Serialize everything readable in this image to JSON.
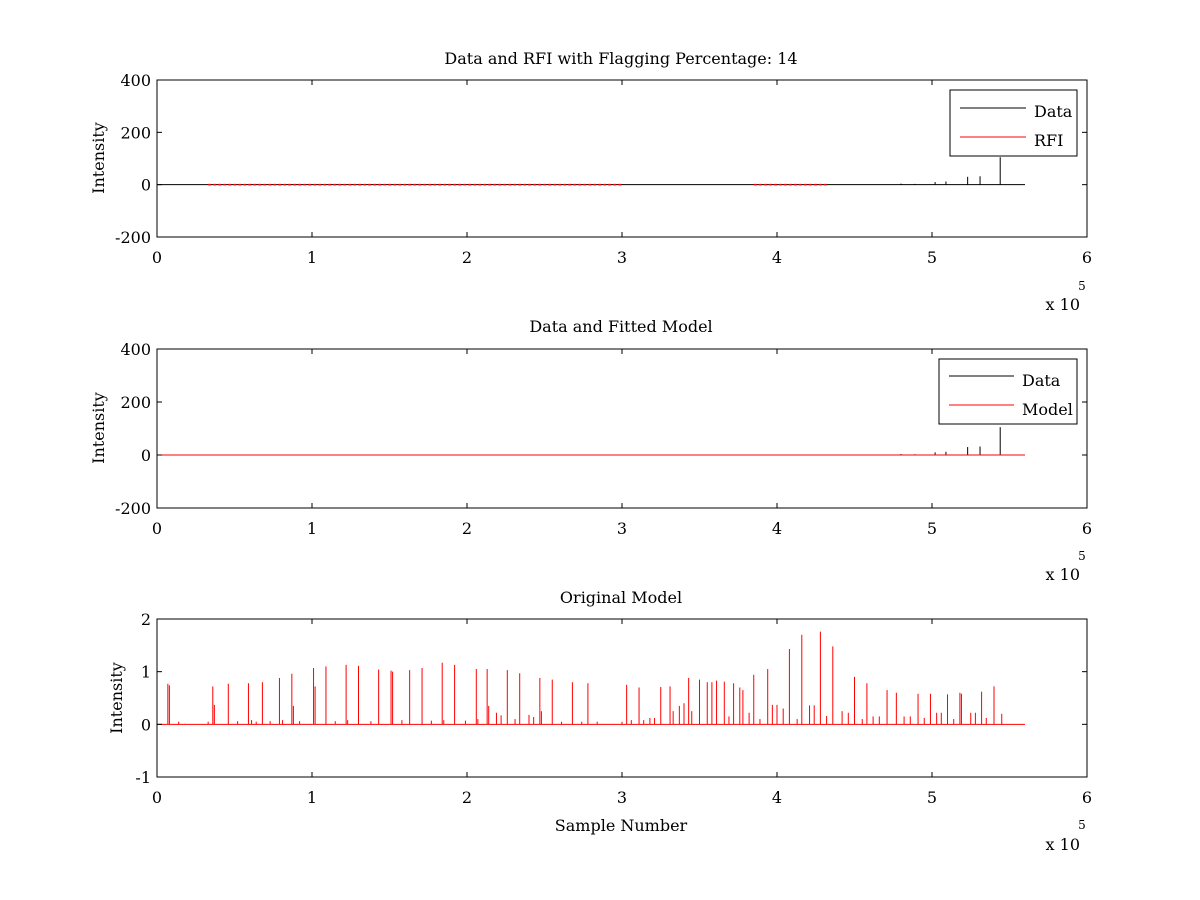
{
  "figure": {
    "background": "#ffffff",
    "axis_color": "#000000",
    "data_color": "#000000",
    "model_color": "#ff0000"
  },
  "chart_data": [
    {
      "type": "line",
      "title": "Data and RFI with Flagging Percentage: 14",
      "xlabel": "",
      "ylabel": "Intensity",
      "xlim": [
        0,
        600000
      ],
      "ylim": [
        -200,
        400
      ],
      "xticks": [
        "0",
        "1",
        "2",
        "3",
        "4",
        "5",
        "6"
      ],
      "yticks": [
        "-200",
        "0",
        "200",
        "400"
      ],
      "x_multiplier": "x 10",
      "x_multiplier_exp": "5",
      "grid": false,
      "legend_position": "top-right",
      "series": [
        {
          "name": "Data",
          "color": "#000000",
          "baseline": {
            "x": [
              0,
              560000
            ],
            "y": 0
          },
          "spikes": [
            [
              480000,
              4
            ],
            [
              489000,
              3
            ],
            [
              502000,
              10
            ],
            [
              509000,
              12
            ],
            [
              523000,
              30
            ],
            [
              531000,
              32
            ],
            [
              544000,
              105
            ]
          ]
        },
        {
          "name": "RFI",
          "color": "#ff0000",
          "segments": [
            [
              33000,
              300000
            ],
            [
              385000,
              432000
            ]
          ]
        }
      ]
    },
    {
      "type": "line",
      "title": "Data and Fitted Model",
      "xlabel": "",
      "ylabel": "Intensity",
      "xlim": [
        0,
        600000
      ],
      "ylim": [
        -200,
        400
      ],
      "xticks": [
        "0",
        "1",
        "2",
        "3",
        "4",
        "5",
        "6"
      ],
      "yticks": [
        "-200",
        "0",
        "200",
        "400"
      ],
      "x_multiplier": "x 10",
      "x_multiplier_exp": "5",
      "grid": false,
      "legend_position": "top-right",
      "series": [
        {
          "name": "Data",
          "color": "#000000",
          "baseline": {
            "x": [
              0,
              560000
            ],
            "y": 0
          },
          "spikes": [
            [
              480000,
              4
            ],
            [
              489000,
              3
            ],
            [
              502000,
              10
            ],
            [
              509000,
              12
            ],
            [
              523000,
              30
            ],
            [
              531000,
              32
            ],
            [
              544000,
              105
            ]
          ]
        },
        {
          "name": "Model",
          "color": "#ff0000",
          "baseline": {
            "x": [
              0,
              560000
            ],
            "y": 0
          }
        }
      ]
    },
    {
      "type": "line",
      "title": "Original Model",
      "xlabel": "Sample Number",
      "ylabel": "Intensity",
      "xlim": [
        0,
        600000
      ],
      "ylim": [
        -1,
        2
      ],
      "xticks": [
        "0",
        "1",
        "2",
        "3",
        "4",
        "5",
        "6"
      ],
      "yticks": [
        "-1",
        "0",
        "1",
        "2"
      ],
      "x_multiplier": "x 10",
      "x_multiplier_exp": "5",
      "grid": false,
      "legend_position": "none",
      "series": [
        {
          "name": "",
          "color": "#ff0000",
          "baseline": {
            "x": [
              0,
              560000
            ],
            "y": 0
          },
          "spikes": [
            [
              7000,
              0.77
            ],
            [
              8000,
              0.74
            ],
            [
              14000,
              0.05
            ],
            [
              33000,
              0.05
            ],
            [
              36000,
              0.72
            ],
            [
              37000,
              0.37
            ],
            [
              46000,
              0.77
            ],
            [
              52000,
              0.06
            ],
            [
              59000,
              0.78
            ],
            [
              61000,
              0.08
            ],
            [
              64000,
              0.05
            ],
            [
              68000,
              0.8
            ],
            [
              73000,
              0.06
            ],
            [
              79000,
              0.88
            ],
            [
              81000,
              0.08
            ],
            [
              87000,
              0.96
            ],
            [
              88000,
              0.35
            ],
            [
              92000,
              0.06
            ],
            [
              101000,
              1.07
            ],
            [
              102000,
              0.72
            ],
            [
              109000,
              1.1
            ],
            [
              115000,
              0.06
            ],
            [
              122000,
              1.13
            ],
            [
              123000,
              0.08
            ],
            [
              130000,
              1.11
            ],
            [
              138000,
              0.06
            ],
            [
              143000,
              1.04
            ],
            [
              151000,
              1.02
            ],
            [
              152000,
              1.0
            ],
            [
              158000,
              0.08
            ],
            [
              163000,
              1.03
            ],
            [
              171000,
              1.07
            ],
            [
              177000,
              0.07
            ],
            [
              184000,
              1.17
            ],
            [
              185000,
              0.08
            ],
            [
              192000,
              1.13
            ],
            [
              199000,
              0.07
            ],
            [
              206000,
              1.05
            ],
            [
              207000,
              0.1
            ],
            [
              213000,
              1.05
            ],
            [
              214000,
              0.35
            ],
            [
              219000,
              0.22
            ],
            [
              222000,
              0.17
            ],
            [
              226000,
              1.03
            ],
            [
              231000,
              0.1
            ],
            [
              234000,
              0.97
            ],
            [
              240000,
              0.18
            ],
            [
              243000,
              0.14
            ],
            [
              247000,
              0.88
            ],
            [
              248000,
              0.25
            ],
            [
              255000,
              0.85
            ],
            [
              261000,
              0.05
            ],
            [
              268000,
              0.8
            ],
            [
              274000,
              0.05
            ],
            [
              278000,
              0.78
            ],
            [
              284000,
              0.05
            ],
            [
              300000,
              0.05
            ],
            [
              303000,
              0.75
            ],
            [
              306000,
              0.08
            ],
            [
              311000,
              0.7
            ],
            [
              314000,
              0.08
            ],
            [
              318000,
              0.12
            ],
            [
              321000,
              0.12
            ],
            [
              325000,
              0.71
            ],
            [
              331000,
              0.72
            ],
            [
              333000,
              0.25
            ],
            [
              337000,
              0.35
            ],
            [
              340000,
              0.4
            ],
            [
              343000,
              0.88
            ],
            [
              345000,
              0.25
            ],
            [
              350000,
              0.85
            ],
            [
              355000,
              0.8
            ],
            [
              358000,
              0.8
            ],
            [
              361000,
              0.83
            ],
            [
              366000,
              0.81
            ],
            [
              369000,
              0.15
            ],
            [
              372000,
              0.78
            ],
            [
              376000,
              0.7
            ],
            [
              378000,
              0.65
            ],
            [
              382000,
              0.22
            ],
            [
              385000,
              0.94
            ],
            [
              389000,
              0.1
            ],
            [
              394000,
              1.05
            ],
            [
              397000,
              0.37
            ],
            [
              400000,
              0.37
            ],
            [
              404000,
              0.3
            ],
            [
              408000,
              1.43
            ],
            [
              413000,
              0.1
            ],
            [
              416000,
              1.7
            ],
            [
              421000,
              0.36
            ],
            [
              424000,
              0.36
            ],
            [
              428000,
              1.76
            ],
            [
              432000,
              0.16
            ],
            [
              436000,
              1.48
            ],
            [
              442000,
              0.25
            ],
            [
              446000,
              0.22
            ],
            [
              450000,
              0.9
            ],
            [
              455000,
              0.1
            ],
            [
              458000,
              0.78
            ],
            [
              462000,
              0.15
            ],
            [
              466000,
              0.15
            ],
            [
              471000,
              0.65
            ],
            [
              477000,
              0.6
            ],
            [
              482000,
              0.15
            ],
            [
              486000,
              0.15
            ],
            [
              491000,
              0.58
            ],
            [
              495000,
              0.12
            ],
            [
              499000,
              0.58
            ],
            [
              503000,
              0.22
            ],
            [
              506000,
              0.22
            ],
            [
              510000,
              0.57
            ],
            [
              514000,
              0.1
            ],
            [
              518000,
              0.6
            ],
            [
              519000,
              0.58
            ],
            [
              525000,
              0.22
            ],
            [
              528000,
              0.22
            ],
            [
              532000,
              0.62
            ],
            [
              535000,
              0.12
            ],
            [
              540000,
              0.72
            ],
            [
              545000,
              0.2
            ]
          ]
        }
      ]
    }
  ]
}
